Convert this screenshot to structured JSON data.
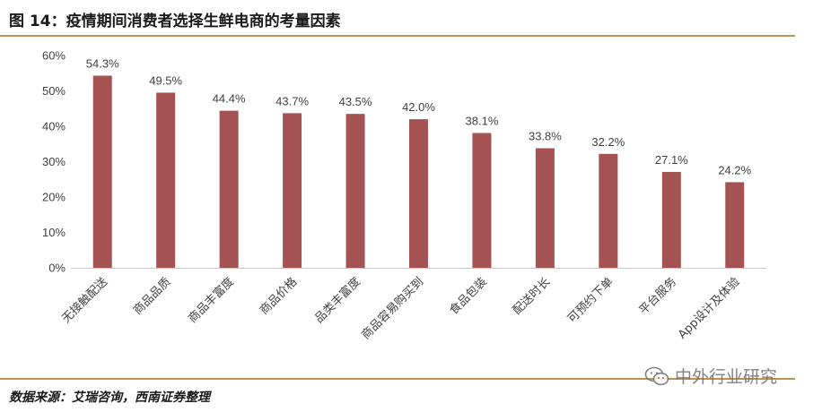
{
  "figure": {
    "title": "图 14：疫情期间消费者选择生鲜电商的考量因素",
    "source": "数据来源：艾瑞咨询，西南证券整理",
    "watermark": "中外行业研究",
    "bar_color": "#a55352",
    "rule_color": "#c1904f"
  },
  "chart_data": {
    "type": "bar",
    "categories": [
      "无接触配送",
      "商品品质",
      "商品丰富度",
      "商品价格",
      "品类丰富度",
      "商品容易购买到",
      "食品包装",
      "配送时长",
      "可预约下单",
      "平台服务",
      "App设计及体验"
    ],
    "values": [
      54.3,
      49.5,
      44.4,
      43.7,
      43.5,
      42.0,
      38.1,
      33.8,
      32.2,
      27.1,
      24.2
    ],
    "value_labels": [
      "54.3%",
      "49.5%",
      "44.4%",
      "43.7%",
      "43.5%",
      "42.0%",
      "38.1%",
      "33.8%",
      "32.2%",
      "27.1%",
      "24.2%"
    ],
    "yticks": [
      "0%",
      "10%",
      "20%",
      "30%",
      "40%",
      "50%",
      "60%"
    ],
    "ylim": [
      0,
      60
    ],
    "title": "",
    "xlabel": "",
    "ylabel": "",
    "grid": false
  }
}
